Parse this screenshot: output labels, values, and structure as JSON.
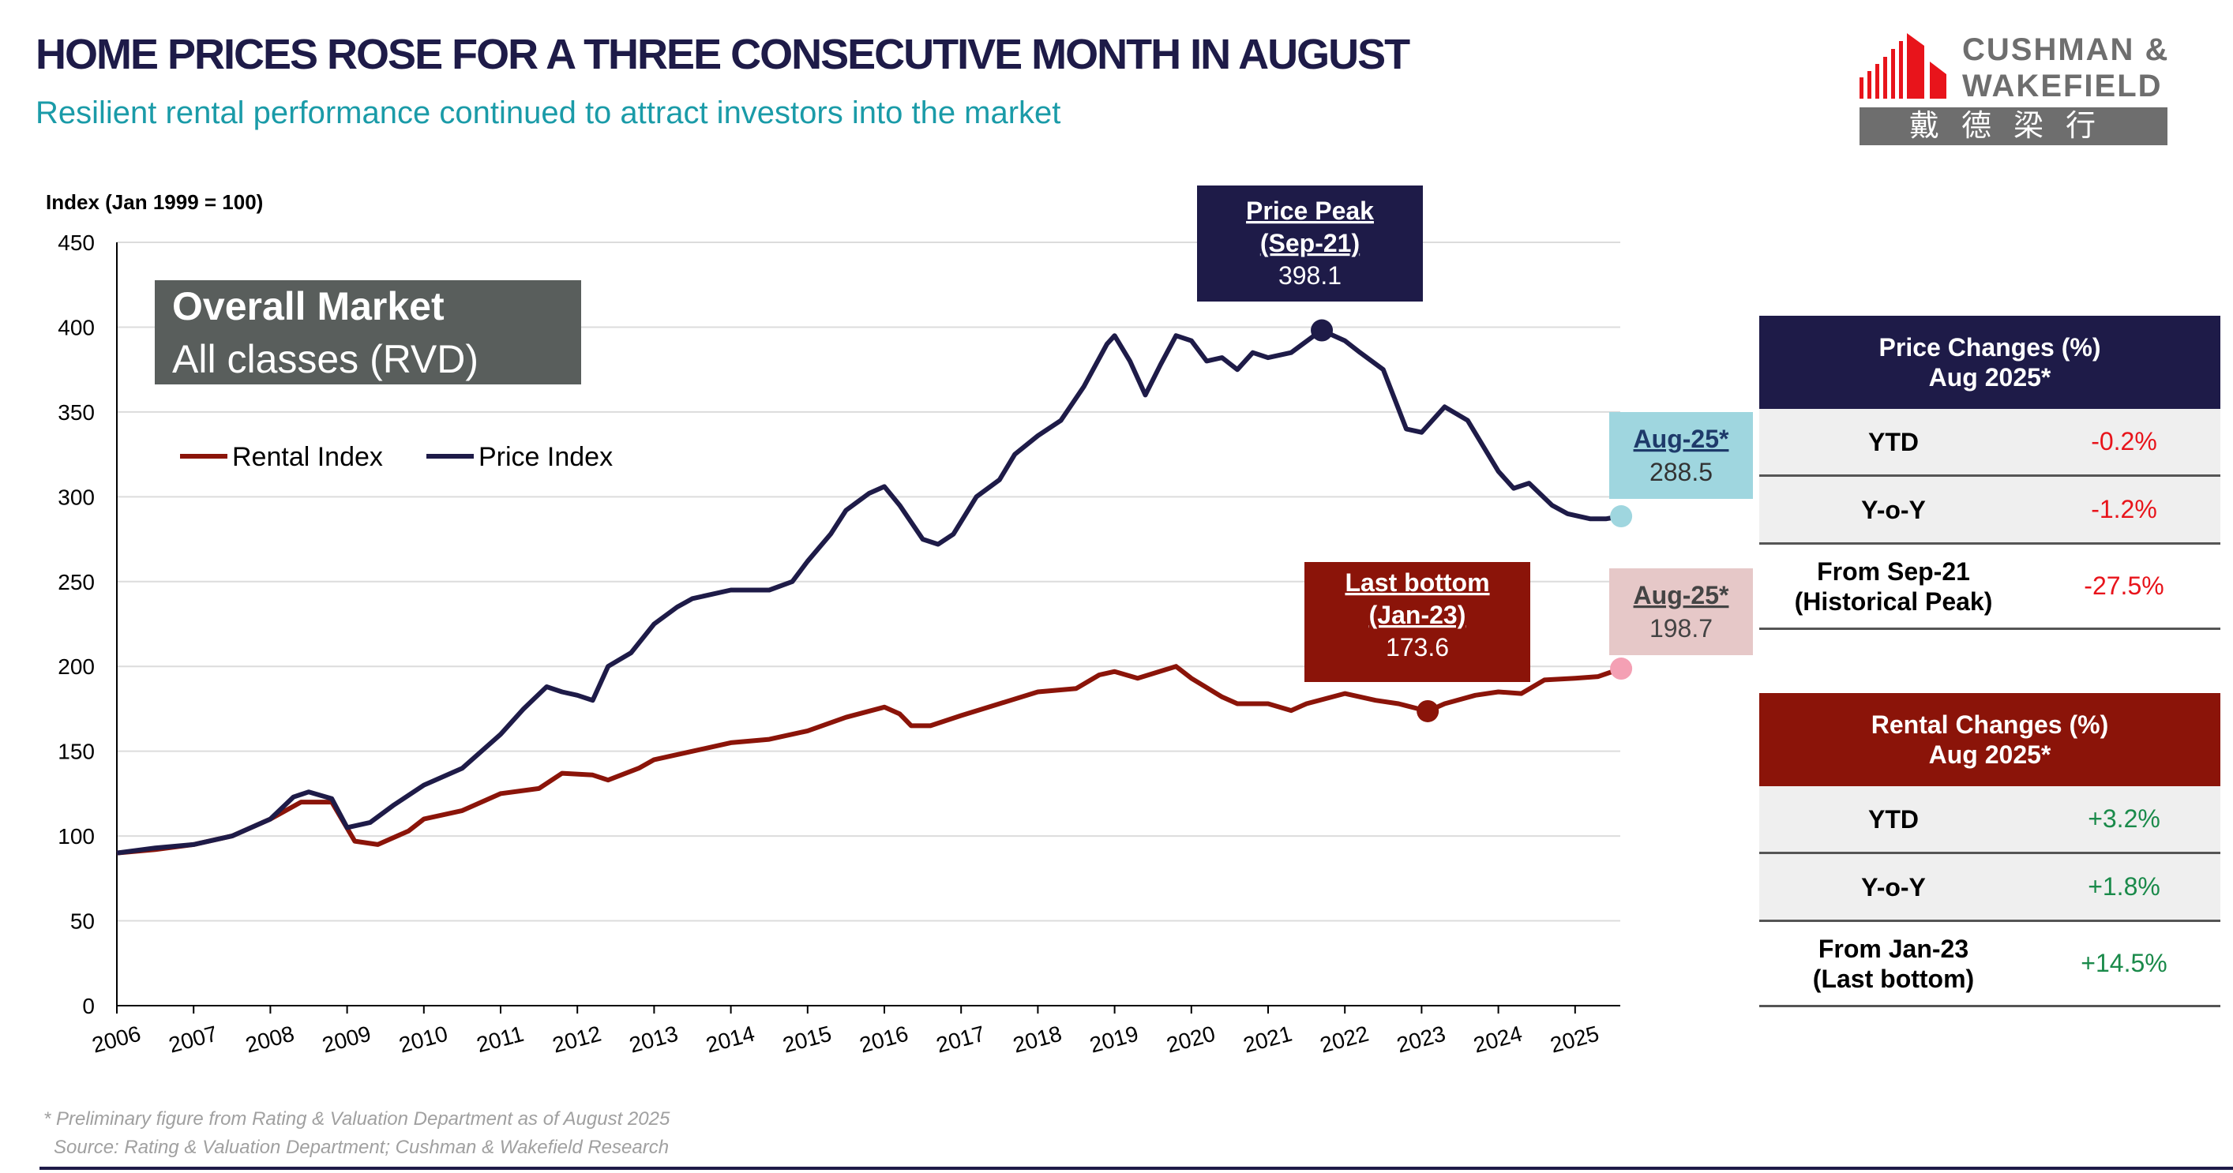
{
  "header": {
    "title": "HOME PRICES ROSE FOR A THREE CONSECUTIVE MONTH IN AUGUST",
    "subtitle": "Resilient rental performance continued to attract investors into the market"
  },
  "logo": {
    "line1": "CUSHMAN &",
    "line2": "WAKEFIELD",
    "chinese": "戴德梁行"
  },
  "chart_data": {
    "type": "line",
    "title": "Overall Market",
    "subtitle": "All classes (RVD)",
    "ylabel": "Index (Jan 1999 = 100)",
    "ylim": [
      0,
      450
    ],
    "yticks": [
      0,
      50,
      100,
      150,
      200,
      250,
      300,
      350,
      400,
      450
    ],
    "xlim": [
      2006,
      2025.7
    ],
    "xticks": [
      "2006",
      "2007",
      "2008",
      "2009",
      "2010",
      "2011",
      "2012",
      "2013",
      "2014",
      "2015",
      "2016",
      "2017",
      "2018",
      "2019",
      "2020",
      "2021",
      "2022",
      "2023",
      "2024",
      "2025"
    ],
    "legend": "top-left",
    "colors": {
      "rental": "#8b1409",
      "price": "#1e1b48",
      "price_end": "#9fd6df",
      "rental_end": "#f4a0b4"
    },
    "series": [
      {
        "name": "Rental Index",
        "points": [
          [
            2006,
            90
          ],
          [
            2006.5,
            92
          ],
          [
            2007,
            95
          ],
          [
            2007.5,
            100
          ],
          [
            2008,
            110
          ],
          [
            2008.4,
            120
          ],
          [
            2008.8,
            120
          ],
          [
            2009.1,
            97
          ],
          [
            2009.4,
            95
          ],
          [
            2009.8,
            103
          ],
          [
            2010,
            110
          ],
          [
            2010.5,
            115
          ],
          [
            2011,
            125
          ],
          [
            2011.5,
            128
          ],
          [
            2011.8,
            137
          ],
          [
            2012.2,
            136
          ],
          [
            2012.4,
            133
          ],
          [
            2012.8,
            140
          ],
          [
            2013,
            145
          ],
          [
            2013.5,
            150
          ],
          [
            2014,
            155
          ],
          [
            2014.5,
            157
          ],
          [
            2015,
            162
          ],
          [
            2015.5,
            170
          ],
          [
            2016,
            176
          ],
          [
            2016.2,
            172
          ],
          [
            2016.35,
            165
          ],
          [
            2016.6,
            165
          ],
          [
            2017,
            171
          ],
          [
            2017.5,
            178
          ],
          [
            2018,
            185
          ],
          [
            2018.5,
            187
          ],
          [
            2018.8,
            195
          ],
          [
            2019,
            197
          ],
          [
            2019.3,
            193
          ],
          [
            2019.8,
            200
          ],
          [
            2020,
            193
          ],
          [
            2020.4,
            182
          ],
          [
            2020.6,
            178
          ],
          [
            2021,
            178
          ],
          [
            2021.3,
            174
          ],
          [
            2021.5,
            178
          ],
          [
            2022,
            184
          ],
          [
            2022.4,
            180
          ],
          [
            2022.7,
            178
          ],
          [
            2023.08,
            173.6
          ],
          [
            2023.3,
            178
          ],
          [
            2023.7,
            183
          ],
          [
            2024,
            185
          ],
          [
            2024.3,
            184
          ],
          [
            2024.6,
            192
          ],
          [
            2025,
            193
          ],
          [
            2025.3,
            194
          ],
          [
            2025.6,
            198.7
          ]
        ]
      },
      {
        "name": "Price Index",
        "points": [
          [
            2006,
            90
          ],
          [
            2006.5,
            93
          ],
          [
            2007,
            95
          ],
          [
            2007.5,
            100
          ],
          [
            2008,
            110
          ],
          [
            2008.3,
            123
          ],
          [
            2008.5,
            126
          ],
          [
            2008.8,
            122
          ],
          [
            2009,
            105
          ],
          [
            2009.3,
            108
          ],
          [
            2009.6,
            118
          ],
          [
            2010,
            130
          ],
          [
            2010.5,
            140
          ],
          [
            2011,
            160
          ],
          [
            2011.3,
            175
          ],
          [
            2011.6,
            188
          ],
          [
            2011.8,
            185
          ],
          [
            2012,
            183
          ],
          [
            2012.2,
            180
          ],
          [
            2012.4,
            200
          ],
          [
            2012.7,
            208
          ],
          [
            2013,
            225
          ],
          [
            2013.3,
            235
          ],
          [
            2013.5,
            240
          ],
          [
            2014,
            245
          ],
          [
            2014.5,
            245
          ],
          [
            2014.8,
            250
          ],
          [
            2015,
            262
          ],
          [
            2015.3,
            278
          ],
          [
            2015.5,
            292
          ],
          [
            2015.8,
            302
          ],
          [
            2016,
            306
          ],
          [
            2016.2,
            295
          ],
          [
            2016.5,
            275
          ],
          [
            2016.7,
            272
          ],
          [
            2016.9,
            278
          ],
          [
            2017.2,
            300
          ],
          [
            2017.5,
            310
          ],
          [
            2017.7,
            325
          ],
          [
            2018,
            336
          ],
          [
            2018.3,
            345
          ],
          [
            2018.6,
            365
          ],
          [
            2018.9,
            390
          ],
          [
            2019,
            395
          ],
          [
            2019.2,
            380
          ],
          [
            2019.4,
            360
          ],
          [
            2019.6,
            378
          ],
          [
            2019.8,
            395
          ],
          [
            2020,
            392
          ],
          [
            2020.2,
            380
          ],
          [
            2020.4,
            382
          ],
          [
            2020.6,
            375
          ],
          [
            2020.8,
            385
          ],
          [
            2021,
            382
          ],
          [
            2021.3,
            385
          ],
          [
            2021.6,
            395
          ],
          [
            2021.7,
            398.1
          ],
          [
            2022,
            392
          ],
          [
            2022.2,
            385
          ],
          [
            2022.5,
            375
          ],
          [
            2022.8,
            340
          ],
          [
            2023,
            338
          ],
          [
            2023.3,
            353
          ],
          [
            2023.6,
            345
          ],
          [
            2024,
            315
          ],
          [
            2024.2,
            305
          ],
          [
            2024.4,
            308
          ],
          [
            2024.7,
            295
          ],
          [
            2024.9,
            290
          ],
          [
            2025.2,
            287
          ],
          [
            2025.4,
            287
          ],
          [
            2025.6,
            288.5
          ]
        ]
      }
    ],
    "annotations": {
      "peak": {
        "title": "Price Peak",
        "date": "(Sep-21)",
        "value": "398.1",
        "x": 2021.7,
        "y": 398.1
      },
      "bottom": {
        "title": "Last bottom",
        "date": "(Jan-23)",
        "value": "173.6",
        "x": 2023.08,
        "y": 173.6
      },
      "price_latest": {
        "date": "Aug-25*",
        "value": "288.5",
        "x": 2025.6,
        "y": 288.5
      },
      "rental_latest": {
        "date": "Aug-25*",
        "value": "198.7",
        "x": 2025.6,
        "y": 198.7
      }
    }
  },
  "price_table": {
    "header_line1": "Price Changes (%)",
    "header_line2": "Aug 2025*",
    "rows": [
      {
        "label": "YTD",
        "value": "-0.2%"
      },
      {
        "label": "Y-o-Y",
        "value": "-1.2%"
      },
      {
        "label": "From Sep-21",
        "label2": "(Historical Peak)",
        "value": "-27.5%"
      }
    ]
  },
  "rental_table": {
    "header_line1": "Rental Changes (%)",
    "header_line2": "Aug 2025*",
    "rows": [
      {
        "label": "YTD",
        "value": "+3.2%"
      },
      {
        "label": "Y-o-Y",
        "value": "+1.8%"
      },
      {
        "label": "From Jan-23",
        "label2": "(Last bottom)",
        "value": "+14.5%"
      }
    ]
  },
  "footnotes": {
    "note": "* Preliminary figure from Rating & Valuation Department as of August 2025",
    "source": "Source: Rating & Valuation Department; Cushman & Wakefield Research"
  }
}
